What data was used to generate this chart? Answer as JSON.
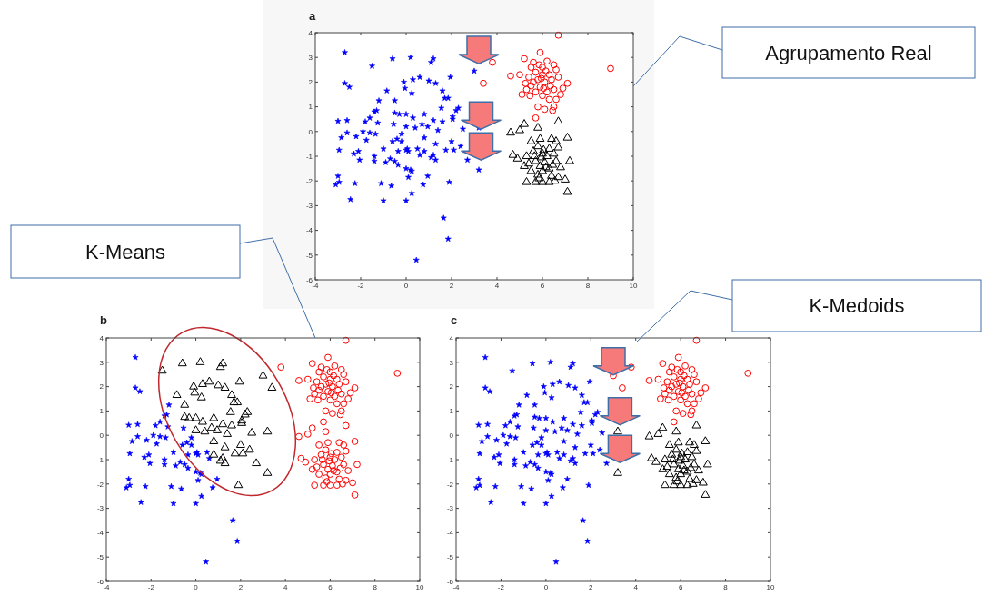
{
  "chart_data": [
    {
      "type": "scatter",
      "title": "a",
      "xlim": [
        -4,
        10
      ],
      "ylim": [
        -6,
        4
      ],
      "xticks": [
        -4,
        -2,
        0,
        2,
        4,
        6,
        8,
        10
      ],
      "yticks": [
        -6,
        -5,
        -4,
        -3,
        -2,
        -1,
        0,
        1,
        2,
        3,
        4
      ],
      "grid": false,
      "annotations": [
        "Agrupamento Real"
      ],
      "series": [
        {
          "color": "#0000ff",
          "marker": "star",
          "x": [
            -2.7,
            -2.7,
            -2.5,
            -1.5,
            -0.6,
            0.2,
            1.1,
            1.2,
            -0.1,
            0.3,
            0.6,
            1.0,
            1.3,
            1.95,
            -0.85,
            -0.05,
            0.25,
            1.6,
            1.7,
            1.85,
            1.55,
            2.2,
            2.3,
            -1.2,
            -0.5,
            -1.3,
            -1.4,
            -1.6,
            -1.8,
            -3.0,
            -2.6,
            -1.25,
            -0.5,
            -0.3,
            0.0,
            0.3,
            0.8,
            0.7,
            0.95,
            1.2,
            1.6,
            2.05,
            2.05,
            3.2,
            -2.6,
            -2.85,
            -2.2,
            -1.9,
            -1.75,
            -1.6,
            -1.35,
            -0.55,
            -0.2,
            -0.4,
            -0.6,
            -0.2,
            0.0,
            0.4,
            0.8,
            1.4,
            1.3,
            -2.95,
            -2.1,
            -2.3,
            -2.05,
            -1.4,
            -1.4,
            -1.0,
            -0.9,
            -0.7,
            -0.5,
            -0.35,
            0.0,
            0.1,
            0.05,
            0.5,
            0.6,
            0.8,
            1.1,
            1.2,
            1.3,
            1.75,
            2.1,
            2.4,
            2.7,
            -0.35,
            0.0,
            0.2,
            0.25,
            0.1,
            0.95,
            3.2,
            -3.0,
            -3.1,
            -2.95,
            -2.25,
            -1.1,
            -0.65,
            0.25,
            0.75,
            1.9,
            -2.45,
            -1.0,
            0.0,
            1.65,
            1.85,
            0.45,
            3.0,
            2.5,
            2.0
          ],
          "values": [
            3.2,
            1.95,
            1.8,
            2.65,
            2.95,
            3.0,
            2.8,
            2.95,
            2.0,
            2.1,
            2.2,
            2.05,
            1.95,
            2.2,
            1.65,
            1.75,
            1.55,
            1.65,
            1.35,
            1.35,
            0.95,
            0.85,
            0.95,
            1.25,
            1.25,
            0.85,
            0.8,
            0.55,
            0.4,
            0.42,
            0.45,
            0.35,
            0.75,
            0.7,
            0.7,
            0.55,
            0.7,
            0.3,
            0.2,
            0.45,
            0.4,
            0.5,
            0.6,
            0.15,
            -0.05,
            -0.25,
            -0.2,
            0.0,
            -0.35,
            -0.05,
            -0.1,
            0.3,
            -0.1,
            -0.3,
            -0.4,
            -0.4,
            0.2,
            0.15,
            -0.25,
            0.05,
            -0.5,
            -0.75,
            -0.8,
            -0.9,
            -1.15,
            -1.0,
            -1.2,
            -0.7,
            -1.25,
            -1.1,
            -1.2,
            -0.8,
            -0.75,
            -0.8,
            -0.7,
            -0.7,
            -0.95,
            -0.8,
            -1.05,
            -0.95,
            -1.15,
            -0.75,
            -0.75,
            -0.6,
            -1.15,
            -1.35,
            -1.5,
            -1.55,
            -1.6,
            -1.85,
            -1.8,
            -1.55,
            -1.8,
            -2.15,
            -2.05,
            -2.1,
            -2.1,
            -2.2,
            -2.5,
            -2.15,
            -2.05,
            -2.75,
            -2.8,
            -2.8,
            -3.5,
            -4.35,
            -5.2,
            2.45,
            0.1,
            -0.4
          ]
        },
        {
          "color": "#ff0000",
          "marker": "circle",
          "x": [
            6.7,
            9.0,
            3.8,
            3.4,
            5.9,
            5.2,
            5.6,
            6.2,
            6.6,
            4.6,
            5.0,
            5.4,
            5.7,
            5.8,
            6.0,
            6.1,
            6.3,
            6.4,
            6.7,
            7.1,
            6.9,
            6.8,
            5.1,
            5.3,
            5.5,
            5.7,
            5.9,
            6.2,
            6.5,
            6.0,
            5.8,
            6.3,
            6.5,
            6.1,
            5.7,
            5.5,
            6.0,
            6.5,
            5.6,
            6.35,
            5.95,
            6.15,
            5.45,
            6.6,
            5.85,
            6.45,
            5.25,
            6.05
          ],
          "values": [
            3.9,
            2.55,
            2.8,
            1.95,
            3.2,
            2.95,
            2.8,
            2.85,
            2.5,
            2.25,
            2.3,
            2.2,
            2.4,
            2.1,
            2.3,
            2.0,
            2.3,
            2.1,
            2.2,
            1.95,
            1.75,
            1.5,
            1.5,
            1.7,
            1.85,
            1.6,
            1.8,
            1.6,
            1.7,
            1.45,
            1.0,
            1.3,
            1.0,
            0.9,
            0.55,
            2.6,
            2.6,
            2.7,
            2.0,
            1.85,
            2.15,
            2.45,
            1.45,
            1.3,
            2.7,
            0.85,
            1.95,
            1.75
          ]
        },
        {
          "color": "#000000",
          "marker": "triangle",
          "x": [
            6.7,
            4.6,
            5.0,
            5.2,
            5.8,
            6.4,
            6.6,
            7.1,
            5.5,
            5.9,
            4.7,
            4.9,
            5.3,
            5.6,
            5.8,
            6.0,
            6.2,
            6.3,
            6.5,
            6.7,
            7.2,
            6.8,
            5.4,
            5.7,
            5.9,
            6.1,
            6.3,
            6.6,
            5.5,
            5.8,
            6.0,
            6.4,
            5.3,
            5.7,
            6.0,
            6.3,
            6.7,
            7.0,
            7.1,
            5.95,
            6.05,
            5.65,
            6.15,
            5.85,
            6.45,
            5.2,
            6.55
          ],
          "values": [
            0.4,
            -0.05,
            0.05,
            0.3,
            0.15,
            -0.3,
            -0.4,
            -0.25,
            -0.4,
            -0.3,
            -0.95,
            -1.1,
            -1.0,
            -0.8,
            -0.6,
            -0.9,
            -1.0,
            -0.7,
            -0.9,
            -0.65,
            -1.2,
            -1.45,
            -1.3,
            -1.2,
            -1.4,
            -1.25,
            -1.5,
            -1.2,
            -1.6,
            -1.75,
            -1.6,
            -1.8,
            -2.05,
            -2.05,
            -2.05,
            -2.05,
            -1.85,
            -1.95,
            -2.45,
            -1.05,
            -0.75,
            -1.0,
            -1.45,
            -1.9,
            -1.35,
            -1.4,
            -2.0
          ]
        }
      ]
    },
    {
      "type": "scatter",
      "title": "b",
      "xlim": [
        -4,
        10
      ],
      "ylim": [
        -6,
        4
      ],
      "xticks": [
        -4,
        -2,
        0,
        2,
        4,
        6,
        8,
        10
      ],
      "yticks": [
        -6,
        -5,
        -4,
        -3,
        -2,
        -1,
        0,
        1,
        2,
        3,
        4
      ],
      "grid": false,
      "annotations": [
        "K-Means"
      ],
      "series": [
        {
          "color": "#0000ff",
          "marker": "star",
          "x": [
            -2.7,
            -2.7,
            -2.5,
            -1.2,
            -1.3,
            -1.4,
            -1.6,
            -1.8,
            -3.0,
            -2.6,
            -1.25,
            -2.6,
            -2.85,
            -2.2,
            -1.9,
            -1.75,
            -1.6,
            -1.35,
            -0.55,
            -0.2,
            -0.4,
            -0.6,
            -0.2,
            -2.95,
            -2.1,
            -2.3,
            -2.05,
            -1.4,
            -1.4,
            -1.0,
            -0.9,
            -0.7,
            -0.5,
            -0.35,
            0.0,
            0.1,
            0.05,
            0.5,
            0.6,
            -0.35,
            0.0,
            0.2,
            0.25,
            0.1,
            0.95,
            -3.0,
            -3.1,
            -2.95,
            -2.25,
            -1.1,
            -0.65,
            0.25,
            0.75,
            -2.45,
            -1.0,
            0.0,
            1.65,
            1.85,
            0.45
          ],
          "values": [
            3.2,
            1.95,
            1.8,
            1.25,
            0.85,
            0.8,
            0.55,
            0.4,
            0.42,
            0.45,
            0.35,
            -0.05,
            -0.25,
            -0.2,
            0.0,
            -0.35,
            -0.05,
            -0.1,
            0.3,
            -0.1,
            -0.3,
            -0.4,
            -0.4,
            -0.75,
            -0.8,
            -0.9,
            -1.15,
            -1.0,
            -1.2,
            -0.7,
            -1.25,
            -1.1,
            -1.2,
            -0.8,
            -0.75,
            -0.8,
            -0.7,
            -0.7,
            -0.95,
            -1.35,
            -1.5,
            -1.55,
            -1.6,
            -1.85,
            -1.8,
            -1.8,
            -2.15,
            -2.05,
            -2.1,
            -2.1,
            -2.2,
            -2.5,
            -2.15,
            -2.75,
            -2.8,
            -2.8,
            -3.5,
            -4.35,
            -5.2
          ]
        },
        {
          "color": "#ff0000",
          "marker": "circle",
          "x": [
            6.7,
            9.0,
            3.8,
            5.9,
            5.2,
            5.6,
            6.2,
            6.6,
            4.6,
            5.0,
            5.4,
            5.7,
            5.8,
            6.0,
            6.1,
            6.3,
            6.4,
            6.7,
            7.1,
            6.9,
            6.8,
            5.1,
            5.3,
            5.5,
            5.7,
            5.9,
            6.2,
            6.5,
            6.0,
            5.8,
            6.3,
            6.5,
            6.1,
            5.7,
            5.5,
            6.0,
            6.5,
            5.6,
            6.35,
            5.95,
            6.15,
            5.45,
            6.6,
            5.85,
            6.45,
            5.25,
            6.05,
            6.7,
            4.6,
            5.0,
            5.2,
            5.8,
            6.4,
            6.6,
            7.1,
            5.5,
            5.9,
            4.7,
            4.9,
            5.3,
            5.6,
            5.8,
            6.0,
            6.2,
            6.3,
            6.5,
            6.7,
            7.2,
            6.8,
            5.4,
            5.7,
            5.9,
            6.1,
            6.3,
            6.6,
            5.5,
            5.8,
            6.0,
            6.4,
            5.3,
            5.7,
            6.0,
            6.3,
            6.7,
            7.0,
            7.1,
            5.95,
            6.05,
            5.65,
            6.15,
            5.85,
            6.45,
            5.2,
            6.55
          ],
          "values": [
            3.9,
            2.55,
            2.8,
            3.2,
            2.95,
            2.8,
            2.85,
            2.5,
            2.25,
            2.3,
            2.2,
            2.4,
            2.1,
            2.3,
            2.0,
            2.3,
            2.1,
            2.2,
            1.95,
            1.75,
            1.5,
            1.5,
            1.7,
            1.85,
            1.6,
            1.8,
            1.6,
            1.7,
            1.45,
            1.0,
            1.3,
            1.0,
            0.9,
            0.55,
            2.6,
            2.6,
            2.7,
            2.0,
            1.85,
            2.15,
            2.45,
            1.45,
            1.3,
            2.7,
            0.85,
            1.95,
            1.75,
            0.4,
            -0.05,
            0.05,
            0.3,
            0.15,
            -0.3,
            -0.4,
            -0.25,
            -0.4,
            -0.3,
            -0.95,
            -1.1,
            -1.0,
            -0.8,
            -0.6,
            -0.9,
            -1.0,
            -0.7,
            -0.9,
            -0.65,
            -1.2,
            -1.45,
            -1.3,
            -1.2,
            -1.4,
            -1.25,
            -1.5,
            -1.2,
            -1.6,
            -1.75,
            -1.6,
            -1.8,
            -2.05,
            -2.05,
            -2.05,
            -2.05,
            -1.85,
            -1.95,
            -2.45,
            -1.05,
            -0.75,
            -1.0,
            -1.45,
            -1.9,
            -1.35,
            -1.4,
            -2.0
          ]
        },
        {
          "color": "#000000",
          "marker": "triangle",
          "x": [
            -1.5,
            -0.6,
            0.2,
            1.1,
            1.2,
            -0.1,
            0.3,
            0.6,
            1.0,
            1.3,
            1.95,
            -0.85,
            -0.05,
            0.25,
            1.6,
            1.7,
            1.85,
            1.55,
            2.2,
            2.3,
            -0.5,
            -0.5,
            -0.3,
            0.0,
            0.3,
            0.8,
            0.7,
            0.95,
            1.2,
            1.6,
            2.05,
            2.05,
            3.2,
            0.0,
            0.4,
            0.8,
            1.4,
            1.3,
            0.8,
            1.1,
            1.2,
            1.3,
            1.75,
            2.1,
            2.4,
            2.7,
            3.2,
            1.9,
            3.0,
            2.5,
            2.0,
            3.4
          ],
          "values": [
            2.65,
            2.95,
            3.0,
            2.8,
            2.95,
            2.0,
            2.1,
            2.2,
            2.05,
            1.95,
            2.2,
            1.65,
            1.75,
            1.55,
            1.65,
            1.35,
            1.35,
            0.95,
            0.85,
            0.95,
            1.25,
            0.75,
            0.7,
            0.7,
            0.55,
            0.7,
            0.3,
            0.2,
            0.45,
            0.4,
            0.5,
            0.6,
            0.15,
            0.2,
            0.15,
            -0.25,
            0.05,
            -0.5,
            -0.8,
            -1.05,
            -0.95,
            -1.15,
            -0.75,
            -0.75,
            -0.6,
            -1.15,
            -1.55,
            -2.05,
            2.45,
            0.1,
            -0.4,
            1.95
          ]
        }
      ]
    },
    {
      "type": "scatter",
      "title": "c",
      "xlim": [
        -4,
        10
      ],
      "ylim": [
        -6,
        4
      ],
      "xticks": [
        -4,
        -2,
        0,
        2,
        4,
        6,
        8,
        10
      ],
      "yticks": [
        -6,
        -5,
        -4,
        -3,
        -2,
        -1,
        0,
        1,
        2,
        3,
        4
      ],
      "grid": false,
      "annotations": [
        "K-Medoids"
      ],
      "series": [
        {
          "color": "#0000ff",
          "marker": "star",
          "x": [
            -2.7,
            -2.7,
            -2.5,
            -1.5,
            -0.6,
            0.2,
            1.1,
            1.2,
            -0.1,
            0.3,
            0.6,
            1.0,
            1.3,
            1.95,
            -0.85,
            -0.05,
            0.25,
            1.6,
            1.7,
            1.85,
            1.55,
            2.2,
            2.3,
            -1.2,
            -0.5,
            -1.3,
            -1.4,
            -1.6,
            -1.8,
            -3.0,
            -2.6,
            -1.25,
            -0.5,
            -0.3,
            0.0,
            0.3,
            0.8,
            0.7,
            0.95,
            1.2,
            1.6,
            2.05,
            2.05,
            -2.6,
            -2.85,
            -2.2,
            -1.9,
            -1.75,
            -1.6,
            -1.35,
            -0.55,
            -0.2,
            -0.4,
            -0.6,
            -0.2,
            0.0,
            0.4,
            0.8,
            1.4,
            1.3,
            -2.95,
            -2.1,
            -2.3,
            -2.05,
            -1.4,
            -1.4,
            -1.0,
            -0.9,
            -0.7,
            -0.5,
            -0.35,
            0.0,
            0.1,
            0.05,
            0.5,
            0.6,
            0.8,
            1.1,
            1.2,
            1.3,
            1.75,
            2.1,
            2.4,
            2.7,
            -0.35,
            0.0,
            0.2,
            0.25,
            0.1,
            0.95,
            -3.0,
            -3.1,
            -2.95,
            -2.25,
            -1.1,
            -0.65,
            0.25,
            0.75,
            1.9,
            -2.45,
            -1.0,
            0.0,
            1.65,
            1.85,
            0.45,
            2.5,
            2.0
          ],
          "values": [
            3.2,
            1.95,
            1.8,
            2.65,
            2.95,
            3.0,
            2.8,
            2.95,
            2.0,
            2.1,
            2.2,
            2.05,
            1.95,
            2.2,
            1.65,
            1.75,
            1.55,
            1.65,
            1.35,
            1.35,
            0.95,
            0.85,
            0.95,
            1.25,
            1.25,
            0.85,
            0.8,
            0.55,
            0.4,
            0.42,
            0.45,
            0.35,
            0.75,
            0.7,
            0.7,
            0.55,
            0.7,
            0.3,
            0.2,
            0.45,
            0.4,
            0.5,
            0.6,
            -0.05,
            -0.25,
            -0.2,
            0.0,
            -0.35,
            -0.05,
            -0.1,
            0.3,
            -0.1,
            -0.3,
            -0.4,
            -0.4,
            0.2,
            0.15,
            -0.25,
            0.05,
            -0.5,
            -0.75,
            -0.8,
            -0.9,
            -1.15,
            -1.0,
            -1.2,
            -0.7,
            -1.25,
            -1.1,
            -1.2,
            -0.8,
            -0.75,
            -0.8,
            -0.7,
            -0.7,
            -0.95,
            -0.8,
            -1.05,
            -0.95,
            -1.15,
            -0.75,
            -0.75,
            -0.6,
            -1.15,
            -1.35,
            -1.5,
            -1.55,
            -1.6,
            -1.85,
            -1.8,
            -1.8,
            -2.15,
            -2.05,
            -2.1,
            -2.1,
            -2.2,
            -2.5,
            -2.15,
            -2.05,
            -2.75,
            -2.8,
            -2.8,
            -3.5,
            -4.35,
            -5.2,
            0.1,
            -0.4
          ]
        },
        {
          "color": "#ff0000",
          "marker": "circle",
          "x": [
            6.7,
            9.0,
            3.8,
            3.4,
            5.9,
            5.2,
            5.6,
            6.2,
            6.6,
            4.6,
            5.0,
            5.4,
            5.7,
            5.8,
            6.0,
            6.1,
            6.3,
            6.4,
            6.7,
            7.1,
            6.9,
            6.8,
            5.1,
            5.3,
            5.5,
            5.7,
            5.9,
            6.2,
            6.5,
            6.0,
            5.8,
            6.3,
            6.5,
            6.1,
            5.7,
            5.5,
            6.0,
            6.5,
            5.6,
            6.35,
            5.95,
            6.15,
            5.45,
            6.6,
            5.85,
            6.45,
            5.25,
            6.05,
            3.0
          ],
          "values": [
            3.9,
            2.55,
            2.8,
            1.95,
            3.2,
            2.95,
            2.8,
            2.85,
            2.5,
            2.25,
            2.3,
            2.2,
            2.4,
            2.1,
            2.3,
            2.0,
            2.3,
            2.1,
            2.2,
            1.95,
            1.75,
            1.5,
            1.5,
            1.7,
            1.85,
            1.6,
            1.8,
            1.6,
            1.7,
            1.45,
            1.0,
            1.3,
            1.0,
            0.9,
            0.55,
            2.6,
            2.6,
            2.7,
            2.0,
            1.85,
            2.15,
            2.45,
            1.45,
            1.3,
            2.7,
            0.85,
            1.95,
            1.75,
            2.45
          ]
        },
        {
          "color": "#000000",
          "marker": "triangle",
          "x": [
            6.7,
            4.6,
            5.0,
            5.2,
            5.8,
            6.4,
            6.6,
            7.1,
            5.5,
            5.9,
            4.7,
            4.9,
            5.3,
            5.6,
            5.8,
            6.0,
            6.2,
            6.3,
            6.5,
            6.7,
            7.2,
            6.8,
            5.4,
            5.7,
            5.9,
            6.1,
            6.3,
            6.6,
            5.5,
            5.8,
            6.0,
            6.4,
            5.3,
            5.7,
            6.0,
            6.3,
            6.7,
            7.0,
            7.1,
            5.95,
            6.05,
            5.65,
            6.15,
            5.85,
            6.45,
            5.2,
            6.55,
            3.2,
            3.2
          ],
          "values": [
            0.4,
            -0.05,
            0.05,
            0.3,
            0.15,
            -0.3,
            -0.4,
            -0.25,
            -0.4,
            -0.3,
            -0.95,
            -1.1,
            -1.0,
            -0.8,
            -0.6,
            -0.9,
            -1.0,
            -0.7,
            -0.9,
            -0.65,
            -1.2,
            -1.45,
            -1.3,
            -1.2,
            -1.4,
            -1.25,
            -1.5,
            -1.2,
            -1.6,
            -1.75,
            -1.6,
            -1.8,
            -2.05,
            -2.05,
            -2.05,
            -2.05,
            -1.85,
            -1.95,
            -2.45,
            -1.05,
            -0.75,
            -1.0,
            -1.45,
            -1.9,
            -1.35,
            -1.4,
            -2.0,
            0.15,
            -1.55
          ]
        }
      ]
    }
  ]
}
